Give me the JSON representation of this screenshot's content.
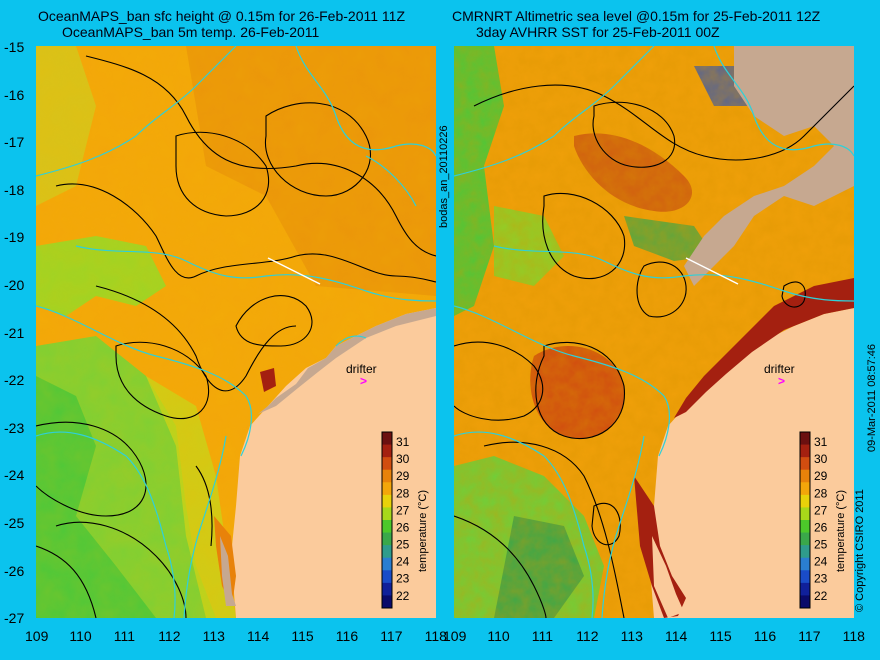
{
  "titles": {
    "left_line1": "OceanMAPS_ban sfc height @ 0.15m for 26-Feb-2011 11Z",
    "left_line2": "OceanMAPS_ban 5m temp. 26-Feb-2011",
    "right_line1": "CMRNRT Altimetric sea level  @0.15m  for 25-Feb-2011 12Z",
    "right_line2": "3day AVHRR SST for 25-Feb-2011 00Z"
  },
  "lat_ticks": [
    "-15",
    "-16",
    "-17",
    "-18",
    "-19",
    "-20",
    "-21",
    "-22",
    "-23",
    "-24",
    "-25",
    "-26",
    "-27"
  ],
  "lon_ticks": [
    "109",
    "110",
    "111",
    "112",
    "113",
    "114",
    "115",
    "116",
    "117",
    "118"
  ],
  "side_labels": {
    "left_vertical": "bodas_an_20110226",
    "right_vertical": "09-Mar-2011 08:57:46",
    "copyright": "© Copyright CSIRO 2011"
  },
  "drifter_label": "drifter",
  "colorbar": {
    "label": "temperature (°C)",
    "ticks": [
      "31",
      "30",
      "29",
      "28",
      "27",
      "26",
      "25",
      "24",
      "23",
      "22"
    ],
    "colors": [
      "#6b1010",
      "#a42010",
      "#d14d10",
      "#e8820a",
      "#f3a60a",
      "#e8d20a",
      "#a8d81a",
      "#4cc82a",
      "#3aa84a",
      "#2f9c8c",
      "#2a7ed0",
      "#1a4cc8",
      "#10209a",
      "#0a0a6a"
    ]
  },
  "colors": {
    "background": "#0bc3ee",
    "land": "#fbcb9c",
    "land_mask": "#c6a890",
    "warm_sea": "#f3a60a",
    "cool_sea": "#6fcf3a",
    "contour_cyan": "#2fd0d8",
    "contour_black": "#000000",
    "drifter_arrow": "#ff00ff"
  }
}
